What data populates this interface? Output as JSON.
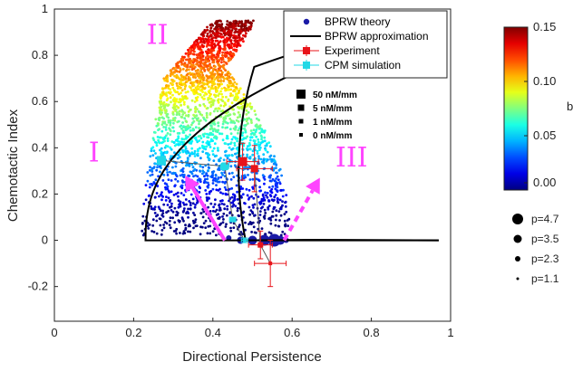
{
  "chart_data": {
    "type": "scatter",
    "xlabel": "Directional Persistence",
    "ylabel": "Chemotactic Index",
    "xlim": [
      0,
      1
    ],
    "ylim": [
      -0.35,
      1
    ],
    "xticks": [
      "0",
      "0.2",
      "0.4",
      "0.6",
      "0.8",
      "1"
    ],
    "yticks": [
      "-0.2",
      "0",
      "0.2",
      "0.4",
      "0.6",
      "0.8",
      "1"
    ],
    "grid": false,
    "legend_position": "top-right",
    "legend": [
      {
        "label": "BPRW theory",
        "marker": "dot",
        "color": "#1a1aa6"
      },
      {
        "label": "BPRW approximation",
        "marker": "line",
        "color": "#000000"
      },
      {
        "label": "Experiment",
        "marker": "square-errorbar",
        "color": "#e8141a"
      },
      {
        "label": "CPM simulation",
        "marker": "square-errorbar",
        "color": "#22d8e6"
      }
    ],
    "concentration_legend": [
      "50 nM/mm",
      "5 nM/mm",
      "1 nM/mm",
      "0 nM/mm"
    ],
    "region_labels": [
      {
        "text": "I",
        "x": 0.1,
        "y": 0.34
      },
      {
        "text": "II",
        "x": 0.26,
        "y": 0.85
      },
      {
        "text": "III",
        "x": 0.75,
        "y": 0.32
      }
    ],
    "colorbar": {
      "ticks": [
        "0.15",
        "0.10",
        "0.05",
        "0.00"
      ],
      "min": 0,
      "max": 0.15,
      "colormap": "jet",
      "label_fragment": "b"
    },
    "size_legend": [
      "p=4.7",
      "p=3.5",
      "p=2.3",
      "p=1.1"
    ],
    "series": [
      {
        "name": "Experiment",
        "color": "#e8141a",
        "points": [
          {
            "x": 0.475,
            "y": 0.34,
            "xerr": 0.04,
            "yerr": 0.08
          },
          {
            "x": 0.505,
            "y": 0.31,
            "xerr": 0.045,
            "yerr": 0.1
          },
          {
            "x": 0.52,
            "y": -0.02,
            "xerr": 0.03,
            "yerr": 0.06
          },
          {
            "x": 0.545,
            "y": -0.1,
            "xerr": 0.04,
            "yerr": 0.1
          }
        ]
      },
      {
        "name": "CPM simulation",
        "color": "#22d8e6",
        "points": [
          {
            "x": 0.27,
            "y": 0.345,
            "xerr": 0.01,
            "yerr": 0.01
          },
          {
            "x": 0.43,
            "y": 0.32,
            "xerr": 0.01,
            "yerr": 0.015
          },
          {
            "x": 0.45,
            "y": 0.09,
            "xerr": 0.008,
            "yerr": 0.01
          },
          {
            "x": 0.48,
            "y": 0.0,
            "xerr": 0.008,
            "yerr": 0.01
          }
        ]
      }
    ],
    "curves": {
      "outer_approximation": {
        "color": "#000000",
        "x_min": 0.23,
        "x_max": 0.97,
        "top_x": 0.92,
        "top_y": 0.93
      },
      "inner_approximation": {
        "color": "#000000",
        "x_min": 0.48,
        "vertex_x": 0.3,
        "top_y": 0.9
      }
    },
    "arrows": [
      {
        "from": [
          0.43,
          0.0
        ],
        "to": [
          0.33,
          0.28
        ],
        "color": "#ff44ff",
        "style": "solid"
      },
      {
        "from": [
          0.58,
          0.0
        ],
        "to": [
          0.67,
          0.27
        ],
        "color": "#ff44ff",
        "style": "dashed"
      }
    ]
  }
}
